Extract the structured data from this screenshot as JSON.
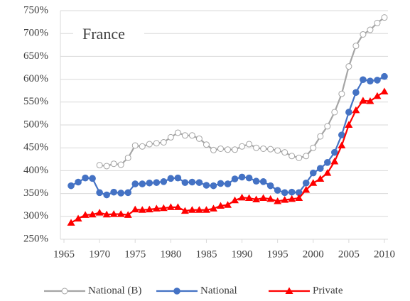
{
  "chart_data": {
    "type": "line",
    "annotation": "France",
    "x": [
      1966,
      1967,
      1968,
      1969,
      1970,
      1971,
      1972,
      1973,
      1974,
      1975,
      1976,
      1977,
      1978,
      1979,
      1980,
      1981,
      1982,
      1983,
      1984,
      1985,
      1986,
      1987,
      1988,
      1989,
      1990,
      1991,
      1992,
      1993,
      1994,
      1995,
      1996,
      1997,
      1998,
      1999,
      2000,
      2001,
      2002,
      2003,
      2004,
      2005,
      2006,
      2007,
      2008,
      2009,
      2010
    ],
    "series": [
      {
        "name": "National (B)",
        "color": "#a5a5a5",
        "marker": "circle-open",
        "values": [
          null,
          null,
          null,
          null,
          412,
          410,
          415,
          413,
          428,
          455,
          453,
          458,
          460,
          462,
          473,
          483,
          477,
          477,
          470,
          457,
          445,
          448,
          446,
          446,
          453,
          458,
          450,
          448,
          447,
          444,
          440,
          432,
          428,
          432,
          450,
          475,
          497,
          528,
          568,
          628,
          673,
          698,
          708,
          723,
          735
        ]
      },
      {
        "name": "National",
        "color": "#4472c4",
        "marker": "circle",
        "values": [
          367,
          375,
          384,
          383,
          352,
          347,
          353,
          351,
          352,
          371,
          371,
          373,
          374,
          376,
          383,
          384,
          374,
          375,
          374,
          368,
          367,
          372,
          371,
          382,
          386,
          384,
          377,
          376,
          367,
          357,
          352,
          353,
          352,
          373,
          395,
          405,
          418,
          440,
          478,
          528,
          571,
          599,
          596,
          598,
          606
        ]
      },
      {
        "name": "Private",
        "color": "#ff0000",
        "marker": "triangle",
        "values": [
          286,
          295,
          303,
          304,
          308,
          304,
          305,
          305,
          303,
          315,
          314,
          315,
          317,
          318,
          320,
          320,
          312,
          314,
          314,
          314,
          317,
          323,
          325,
          335,
          341,
          340,
          337,
          340,
          338,
          333,
          336,
          338,
          340,
          358,
          373,
          382,
          395,
          420,
          455,
          500,
          532,
          553,
          552,
          563,
          573
        ]
      }
    ],
    "xlim": [
      1964.5,
      2010.5
    ],
    "xticks": [
      1965,
      1970,
      1975,
      1980,
      1985,
      1990,
      1995,
      2000,
      2005,
      2010
    ],
    "ylim": [
      250,
      750
    ],
    "yticks": [
      {
        "value": 250,
        "label": "250%"
      },
      {
        "value": 300,
        "label": "300%"
      },
      {
        "value": 350,
        "label": "350%"
      },
      {
        "value": 400,
        "label": "400%"
      },
      {
        "value": 450,
        "label": "450%"
      },
      {
        "value": 500,
        "label": "500%"
      },
      {
        "value": 550,
        "label": "550%"
      },
      {
        "value": 600,
        "label": "600%"
      },
      {
        "value": 650,
        "label": "650%"
      },
      {
        "value": 700,
        "label": "700%"
      },
      {
        "value": 750,
        "label": "750%"
      }
    ],
    "grid": true,
    "legend": "bottom"
  }
}
